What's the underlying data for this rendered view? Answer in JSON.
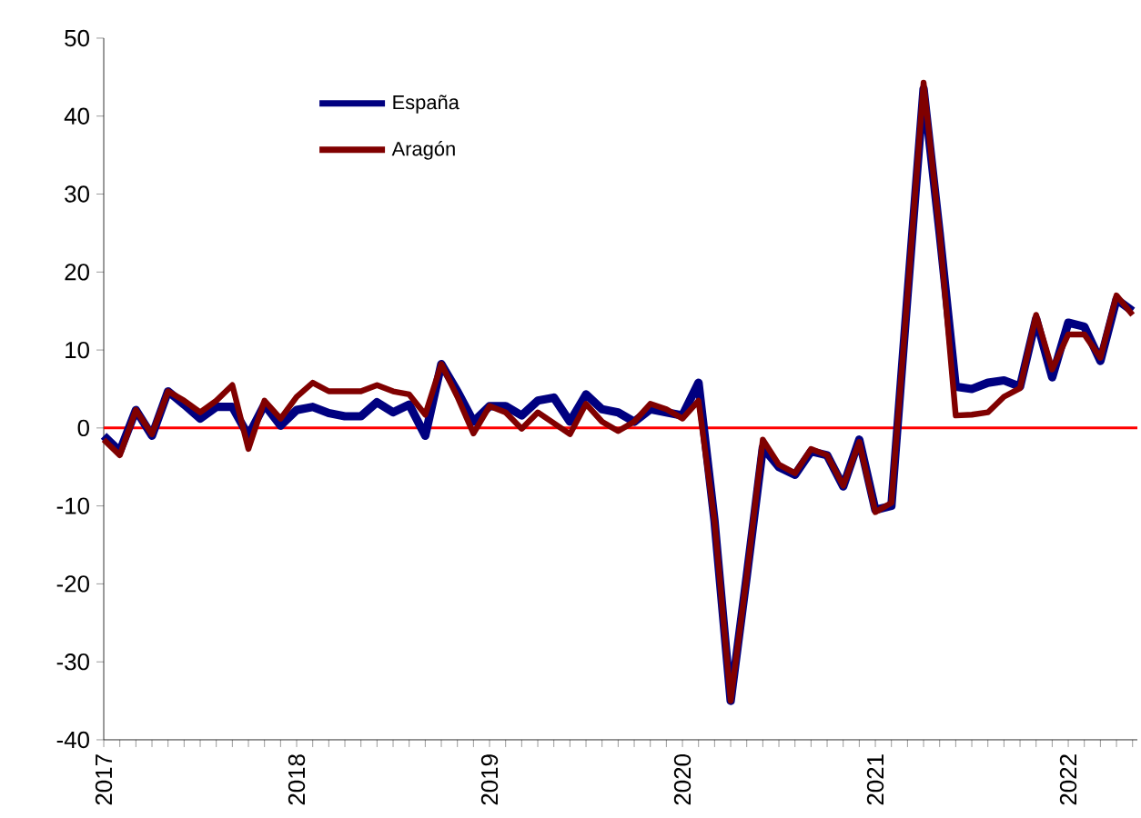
{
  "chart_data": {
    "type": "line",
    "categories": [
      "2017",
      null,
      null,
      null,
      null,
      null,
      null,
      null,
      null,
      null,
      null,
      null,
      "2018",
      null,
      null,
      null,
      null,
      null,
      null,
      null,
      null,
      null,
      null,
      null,
      "2019",
      null,
      null,
      null,
      null,
      null,
      null,
      null,
      null,
      null,
      null,
      null,
      "2020",
      null,
      null,
      null,
      null,
      null,
      null,
      null,
      null,
      null,
      null,
      null,
      "2021",
      null,
      null,
      null,
      null,
      null,
      null,
      null,
      null,
      null,
      null,
      null,
      "2022",
      null,
      null,
      null,
      null
    ],
    "series": [
      {
        "name": "España",
        "color": "#000080",
        "values": [
          -1,
          -3,
          2.3,
          -1,
          4.7,
          3,
          1.2,
          2.7,
          2.7,
          -1,
          3,
          0.3,
          2.3,
          2.7,
          1.9,
          1.5,
          1.5,
          3.3,
          2,
          3,
          -1,
          8.2,
          4.7,
          0.8,
          2.8,
          2.8,
          1.6,
          3.5,
          3.9,
          0.8,
          4.3,
          2.4,
          2,
          0.8,
          2.4,
          2,
          1.6,
          5.8,
          -12,
          -35,
          -19,
          -2.5,
          -5,
          -6,
          -3,
          -3.5,
          -7.5,
          -1.5,
          -10.5,
          -10,
          17,
          43.5,
          25,
          5.3,
          5,
          5.8,
          6.1,
          5.3,
          14,
          6.5,
          13.5,
          13,
          8.6,
          16.5,
          15
        ]
      },
      {
        "name": "Aragón",
        "color": "#800000",
        "values": [
          -1.5,
          -3.5,
          2.3,
          -0.8,
          4.7,
          3.5,
          2,
          3.5,
          5.5,
          -2.7,
          3.5,
          1.2,
          4,
          5.8,
          4.7,
          4.7,
          4.7,
          5.5,
          4.7,
          4.3,
          1.7,
          8.2,
          4,
          -0.7,
          2.8,
          2,
          -0.1,
          2,
          0.6,
          -0.8,
          3.1,
          0.8,
          -0.4,
          0.8,
          3.1,
          2.4,
          1.2,
          3.5,
          -12,
          -35,
          -19,
          -1.5,
          -4.7,
          -5.8,
          -2.7,
          -3.5,
          -7.4,
          -1.8,
          -10.8,
          -9.6,
          17,
          44.3,
          25,
          1.6,
          1.7,
          2,
          4,
          5.1,
          14.5,
          7.5,
          12,
          12,
          9,
          17,
          14.5
        ]
      }
    ],
    "ylim": [
      -40,
      50
    ],
    "yticks": [
      -40,
      -30,
      -20,
      -10,
      0,
      10,
      20,
      30,
      40,
      50
    ],
    "ref_lines": [
      {
        "axis": "y",
        "value": 0,
        "color": "#ff0000"
      }
    ],
    "legend": "top left",
    "grid": false,
    "line_style": "solid"
  }
}
